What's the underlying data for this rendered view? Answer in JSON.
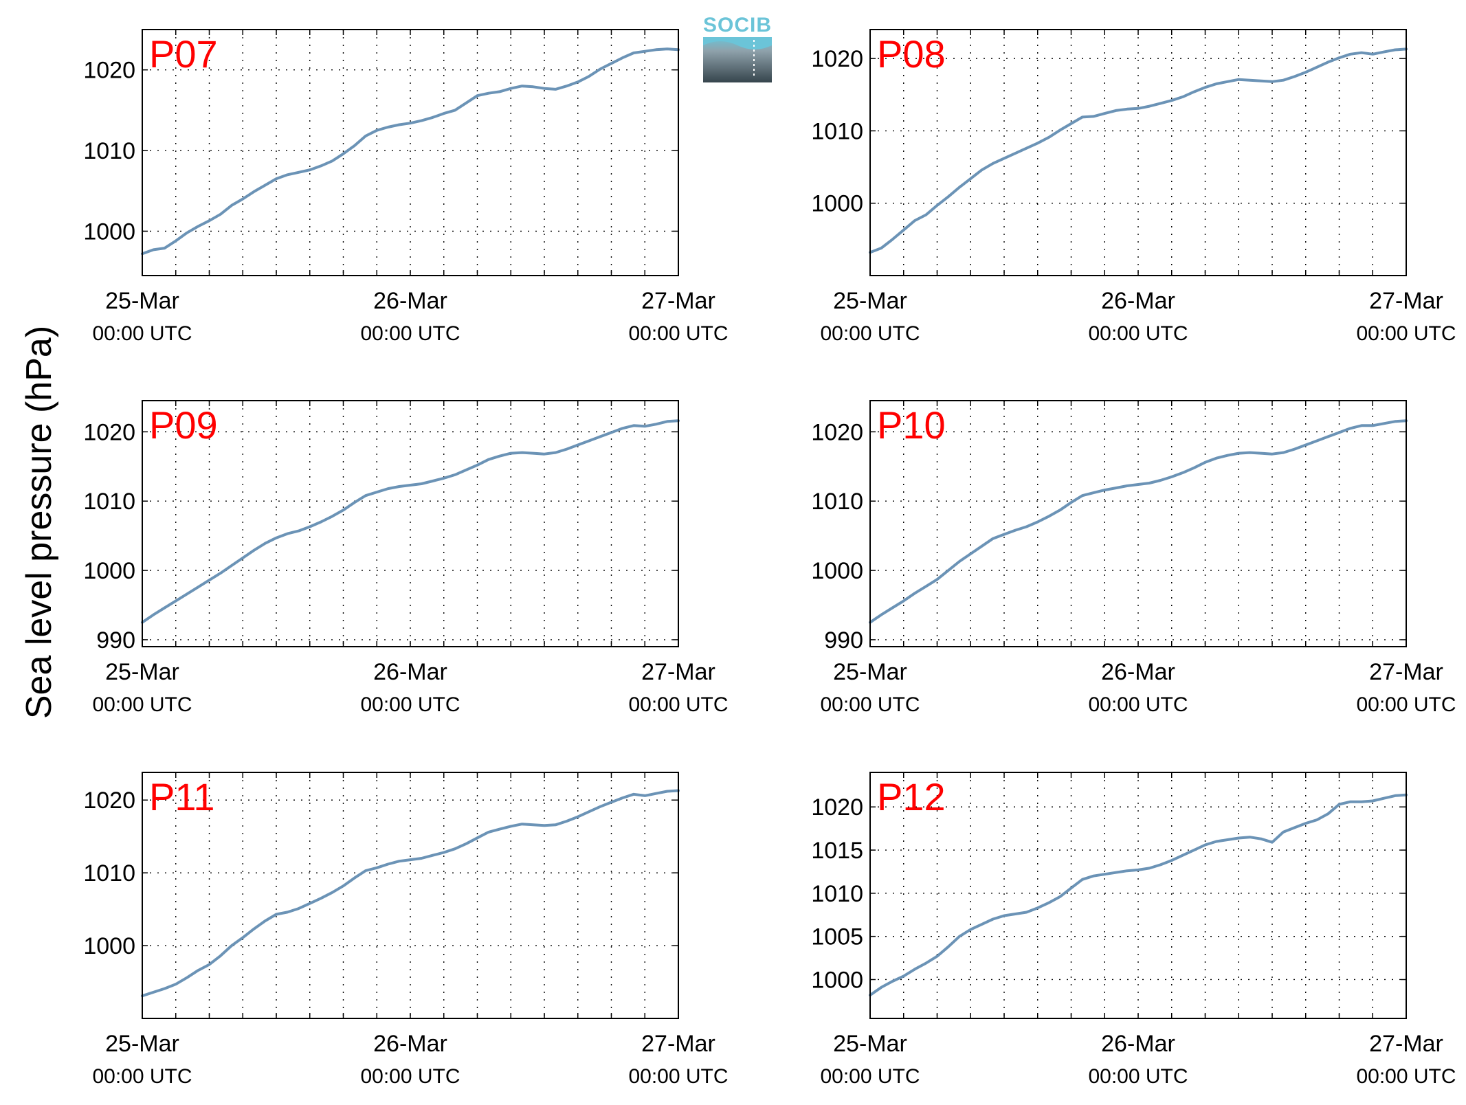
{
  "figure": {
    "ylabel": "Sea level pressure (hPa)",
    "logo_text": "SOCIB",
    "colors": {
      "line": "#6b93b6",
      "label": "#ff0000",
      "logo_top": "#6bc4d8",
      "logo_bottom": "#3a4a52"
    },
    "grid": "dotted"
  },
  "chart_data": [
    {
      "type": "line",
      "title": "P07",
      "xlabels": [
        {
          "date": "25-Mar",
          "time": "00:00 UTC"
        },
        {
          "date": "26-Mar",
          "time": "00:00 UTC"
        },
        {
          "date": "27-Mar",
          "time": "00:00 UTC"
        }
      ],
      "xlim": [
        0,
        48
      ],
      "ylim": [
        994.5,
        1025
      ],
      "yticks": [
        1000,
        1010,
        1020
      ],
      "x": [
        0,
        1,
        2,
        3,
        4,
        5,
        6,
        7,
        8,
        9,
        10,
        11,
        12,
        13,
        14,
        15,
        16,
        17,
        18,
        19,
        20,
        21,
        22,
        23,
        24,
        25,
        26,
        27,
        28,
        29,
        30,
        31,
        32,
        33,
        34,
        35,
        36,
        37,
        38,
        39,
        40,
        41,
        42,
        43,
        44,
        45,
        46,
        47,
        48
      ],
      "series": [
        {
          "values": [
            997.2,
            997.7,
            997.9,
            998.8,
            999.8,
            1000.6,
            1001.3,
            1002.1,
            1003.2,
            1004.0,
            1004.9,
            1005.7,
            1006.5,
            1007.0,
            1007.3,
            1007.6,
            1008.1,
            1008.7,
            1009.6,
            1010.6,
            1011.8,
            1012.5,
            1012.9,
            1013.2,
            1013.4,
            1013.7,
            1014.1,
            1014.6,
            1015.0,
            1015.9,
            1016.8,
            1017.1,
            1017.3,
            1017.7,
            1018.0,
            1017.9,
            1017.7,
            1017.6,
            1018.0,
            1018.5,
            1019.2,
            1020.1,
            1020.8,
            1021.5,
            1022.1,
            1022.3,
            1022.5,
            1022.6,
            1022.5
          ]
        }
      ]
    },
    {
      "type": "line",
      "title": "P08",
      "xlabels": [
        {
          "date": "25-Mar",
          "time": "00:00 UTC"
        },
        {
          "date": "26-Mar",
          "time": "00:00 UTC"
        },
        {
          "date": "27-Mar",
          "time": "00:00 UTC"
        }
      ],
      "xlim": [
        0,
        48
      ],
      "ylim": [
        990,
        1024
      ],
      "yticks": [
        1000,
        1010,
        1020
      ],
      "x": [
        0,
        1,
        2,
        3,
        4,
        5,
        6,
        7,
        8,
        9,
        10,
        11,
        12,
        13,
        14,
        15,
        16,
        17,
        18,
        19,
        20,
        21,
        22,
        23,
        24,
        25,
        26,
        27,
        28,
        29,
        30,
        31,
        32,
        33,
        34,
        35,
        36,
        37,
        38,
        39,
        40,
        41,
        42,
        43,
        44,
        45,
        46,
        47,
        48
      ],
      "series": [
        {
          "values": [
            993.2,
            993.8,
            995.0,
            996.3,
            997.6,
            998.4,
            999.7,
            1000.9,
            1002.2,
            1003.4,
            1004.6,
            1005.5,
            1006.2,
            1006.9,
            1007.6,
            1008.3,
            1009.1,
            1010.1,
            1011.0,
            1011.9,
            1012.0,
            1012.4,
            1012.8,
            1013.0,
            1013.1,
            1013.4,
            1013.8,
            1014.2,
            1014.7,
            1015.4,
            1016.0,
            1016.5,
            1016.8,
            1017.1,
            1017.0,
            1016.9,
            1016.8,
            1017.0,
            1017.5,
            1018.1,
            1018.8,
            1019.5,
            1020.1,
            1020.6,
            1020.8,
            1020.6,
            1020.9,
            1021.2,
            1021.3
          ]
        }
      ]
    },
    {
      "type": "line",
      "title": "P09",
      "xlabels": [
        {
          "date": "25-Mar",
          "time": "00:00 UTC"
        },
        {
          "date": "26-Mar",
          "time": "00:00 UTC"
        },
        {
          "date": "27-Mar",
          "time": "00:00 UTC"
        }
      ],
      "xlim": [
        0,
        48
      ],
      "ylim": [
        989,
        1024.5
      ],
      "yticks": [
        990,
        1000,
        1010,
        1020
      ],
      "x": [
        0,
        1,
        2,
        3,
        4,
        5,
        6,
        7,
        8,
        9,
        10,
        11,
        12,
        13,
        14,
        15,
        16,
        17,
        18,
        19,
        20,
        21,
        22,
        23,
        24,
        25,
        26,
        27,
        28,
        29,
        30,
        31,
        32,
        33,
        34,
        35,
        36,
        37,
        38,
        39,
        40,
        41,
        42,
        43,
        44,
        45,
        46,
        47,
        48
      ],
      "series": [
        {
          "values": [
            992.5,
            993.6,
            994.6,
            995.6,
            996.6,
            997.6,
            998.6,
            999.6,
            1000.7,
            1001.8,
            1002.9,
            1003.9,
            1004.7,
            1005.3,
            1005.7,
            1006.3,
            1007.0,
            1007.8,
            1008.7,
            1009.8,
            1010.8,
            1011.3,
            1011.8,
            1012.1,
            1012.3,
            1012.5,
            1012.9,
            1013.3,
            1013.8,
            1014.5,
            1015.2,
            1016.0,
            1016.5,
            1016.9,
            1017.0,
            1016.9,
            1016.8,
            1017.0,
            1017.5,
            1018.1,
            1018.7,
            1019.3,
            1019.9,
            1020.5,
            1020.9,
            1020.8,
            1021.1,
            1021.5,
            1021.6
          ]
        }
      ]
    },
    {
      "type": "line",
      "title": "P10",
      "xlabels": [
        {
          "date": "25-Mar",
          "time": "00:00 UTC"
        },
        {
          "date": "26-Mar",
          "time": "00:00 UTC"
        },
        {
          "date": "27-Mar",
          "time": "00:00 UTC"
        }
      ],
      "xlim": [
        0,
        48
      ],
      "ylim": [
        989,
        1024.5
      ],
      "yticks": [
        990,
        1000,
        1010,
        1020
      ],
      "x": [
        0,
        1,
        2,
        3,
        4,
        5,
        6,
        7,
        8,
        9,
        10,
        11,
        12,
        13,
        14,
        15,
        16,
        17,
        18,
        19,
        20,
        21,
        22,
        23,
        24,
        25,
        26,
        27,
        28,
        29,
        30,
        31,
        32,
        33,
        34,
        35,
        36,
        37,
        38,
        39,
        40,
        41,
        42,
        43,
        44,
        45,
        46,
        47,
        48
      ],
      "series": [
        {
          "values": [
            992.5,
            993.6,
            994.6,
            995.6,
            996.7,
            997.7,
            998.7,
            1000.0,
            1001.3,
            1002.4,
            1003.5,
            1004.6,
            1005.2,
            1005.8,
            1006.3,
            1007.0,
            1007.8,
            1008.7,
            1009.8,
            1010.8,
            1011.2,
            1011.6,
            1011.9,
            1012.2,
            1012.4,
            1012.6,
            1013.0,
            1013.5,
            1014.1,
            1014.8,
            1015.6,
            1016.2,
            1016.6,
            1016.9,
            1017.0,
            1016.9,
            1016.8,
            1017.0,
            1017.5,
            1018.1,
            1018.7,
            1019.3,
            1019.9,
            1020.5,
            1020.9,
            1020.9,
            1021.2,
            1021.5,
            1021.6
          ]
        }
      ]
    },
    {
      "type": "line",
      "title": "P11",
      "xlabels": [
        {
          "date": "25-Mar",
          "time": "00:00 UTC"
        },
        {
          "date": "26-Mar",
          "time": "00:00 UTC"
        },
        {
          "date": "27-Mar",
          "time": "00:00 UTC"
        }
      ],
      "xlim": [
        0,
        48
      ],
      "ylim": [
        990,
        1023.8
      ],
      "yticks": [
        1000,
        1010,
        1020
      ],
      "x": [
        0,
        1,
        2,
        3,
        4,
        5,
        6,
        7,
        8,
        9,
        10,
        11,
        12,
        13,
        14,
        15,
        16,
        17,
        18,
        19,
        20,
        21,
        22,
        23,
        24,
        25,
        26,
        27,
        28,
        29,
        30,
        31,
        32,
        33,
        34,
        35,
        36,
        37,
        38,
        39,
        40,
        41,
        42,
        43,
        44,
        45,
        46,
        47,
        48
      ],
      "series": [
        {
          "values": [
            993.1,
            993.6,
            994.1,
            994.7,
            995.6,
            996.6,
            997.4,
            998.6,
            1000.0,
            1001.1,
            1002.3,
            1003.4,
            1004.3,
            1004.6,
            1005.1,
            1005.8,
            1006.5,
            1007.3,
            1008.2,
            1009.3,
            1010.3,
            1010.7,
            1011.2,
            1011.6,
            1011.8,
            1012.0,
            1012.4,
            1012.8,
            1013.3,
            1014.0,
            1014.8,
            1015.6,
            1016.0,
            1016.4,
            1016.7,
            1016.6,
            1016.5,
            1016.6,
            1017.1,
            1017.7,
            1018.4,
            1019.1,
            1019.7,
            1020.3,
            1020.8,
            1020.6,
            1020.9,
            1021.2,
            1021.3
          ]
        }
      ]
    },
    {
      "type": "line",
      "title": "P12",
      "xlabels": [
        {
          "date": "25-Mar",
          "time": "00:00 UTC"
        },
        {
          "date": "26-Mar",
          "time": "00:00 UTC"
        },
        {
          "date": "27-Mar",
          "time": "00:00 UTC"
        }
      ],
      "xlim": [
        0,
        48
      ],
      "ylim": [
        995.5,
        1024
      ],
      "yticks": [
        1000,
        1005,
        1010,
        1015,
        1020
      ],
      "x": [
        0,
        1,
        2,
        3,
        4,
        5,
        6,
        7,
        8,
        9,
        10,
        11,
        12,
        13,
        14,
        15,
        16,
        17,
        18,
        19,
        20,
        21,
        22,
        23,
        24,
        25,
        26,
        27,
        28,
        29,
        30,
        31,
        32,
        33,
        34,
        35,
        36,
        37,
        38,
        39,
        40,
        41,
        42,
        43,
        44,
        45,
        46,
        47,
        48
      ],
      "series": [
        {
          "values": [
            998.2,
            999.1,
            999.8,
            1000.4,
            1001.2,
            1001.9,
            1002.7,
            1003.8,
            1005.0,
            1005.8,
            1006.4,
            1007.0,
            1007.4,
            1007.6,
            1007.8,
            1008.3,
            1008.9,
            1009.6,
            1010.6,
            1011.6,
            1012.0,
            1012.2,
            1012.4,
            1012.6,
            1012.7,
            1012.9,
            1013.3,
            1013.8,
            1014.4,
            1015.0,
            1015.6,
            1016.0,
            1016.2,
            1016.4,
            1016.5,
            1016.3,
            1015.9,
            1017.1,
            1017.6,
            1018.1,
            1018.5,
            1019.2,
            1020.3,
            1020.6,
            1020.6,
            1020.7,
            1021.0,
            1021.3,
            1021.4
          ]
        }
      ]
    }
  ]
}
